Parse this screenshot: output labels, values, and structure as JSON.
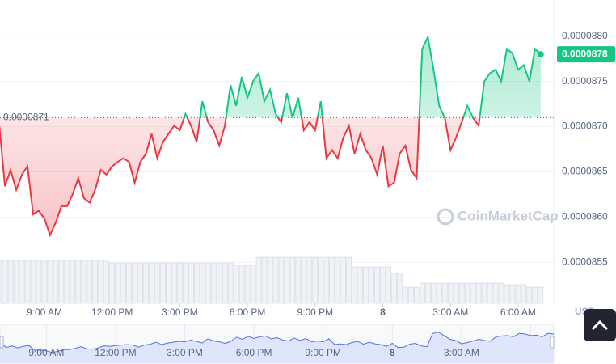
{
  "chart_data": {
    "type": "line",
    "x": [
      7.0,
      7.25,
      7.5,
      7.75,
      8.0,
      8.25,
      8.5,
      8.75,
      9.0,
      9.25,
      9.5,
      9.75,
      10.0,
      10.25,
      10.5,
      10.75,
      11.0,
      11.25,
      11.5,
      11.75,
      12.0,
      12.25,
      12.5,
      12.75,
      13.0,
      13.25,
      13.5,
      13.75,
      14.0,
      14.25,
      14.5,
      14.75,
      15.0,
      15.25,
      15.5,
      15.75,
      16.0,
      16.25,
      16.5,
      16.75,
      17.0,
      17.25,
      17.5,
      17.75,
      18.0,
      18.25,
      18.5,
      18.75,
      19.0,
      19.25,
      19.5,
      19.75,
      20.0,
      20.25,
      20.5,
      20.75,
      21.0,
      21.25,
      21.5,
      21.75,
      22.0,
      22.25,
      22.5,
      22.75,
      23.0,
      23.25,
      23.5,
      23.75,
      24.0,
      24.25,
      24.5,
      24.75,
      25.0,
      25.25,
      25.5,
      25.75,
      26.0,
      26.25,
      26.5,
      26.75,
      27.0,
      27.25,
      27.5,
      27.75,
      28.0,
      28.25,
      28.5,
      28.75,
      29.0,
      29.25,
      29.5,
      29.75,
      30.0,
      30.25,
      30.5,
      30.75,
      31.0
    ],
    "series": [
      {
        "values": [
          8.701e-05,
          8.634e-05,
          8.652e-05,
          8.63e-05,
          8.647e-05,
          8.656e-05,
          8.603e-05,
          8.607e-05,
          8.598e-05,
          8.58e-05,
          8.594e-05,
          8.612e-05,
          8.612e-05,
          8.625e-05,
          8.643e-05,
          8.621e-05,
          8.616e-05,
          8.63e-05,
          8.652e-05,
          8.647e-05,
          8.656e-05,
          8.661e-05,
          8.665e-05,
          8.661e-05,
          8.638e-05,
          8.661e-05,
          8.67e-05,
          8.692e-05,
          8.665e-05,
          8.683e-05,
          8.692e-05,
          8.701e-05,
          8.696e-05,
          8.714e-05,
          8.701e-05,
          8.683e-05,
          8.728e-05,
          8.705e-05,
          8.696e-05,
          8.679e-05,
          8.701e-05,
          8.746e-05,
          8.723e-05,
          8.755e-05,
          8.732e-05,
          8.75e-05,
          8.759e-05,
          8.728e-05,
          8.741e-05,
          8.714e-05,
          8.705e-05,
          8.737e-05,
          8.71e-05,
          8.732e-05,
          8.696e-05,
          8.705e-05,
          8.696e-05,
          8.728e-05,
          8.665e-05,
          8.674e-05,
          8.665e-05,
          8.688e-05,
          8.701e-05,
          8.67e-05,
          8.692e-05,
          8.674e-05,
          8.665e-05,
          8.647e-05,
          8.679e-05,
          8.634e-05,
          8.638e-05,
          8.67e-05,
          8.679e-05,
          8.652e-05,
          8.643e-05,
          8.786e-05,
          8.799e-05,
          8.763e-05,
          8.723e-05,
          8.71e-05,
          8.674e-05,
          8.688e-05,
          8.705e-05,
          8.723e-05,
          8.71e-05,
          8.701e-05,
          8.75e-05,
          8.759e-05,
          8.763e-05,
          8.75e-05,
          8.786e-05,
          8.781e-05,
          8.763e-05,
          8.768e-05,
          8.75e-05,
          8.786e-05,
          8.78e-05
        ],
        "colors": {
          "up": "#16c784",
          "down": "#ea3943"
        }
      }
    ],
    "volume": [
      53,
      53,
      53,
      53,
      53,
      53,
      53,
      53,
      53,
      53,
      53,
      53,
      53,
      53,
      53,
      53,
      53,
      53,
      53,
      53,
      50,
      50,
      50,
      50,
      50,
      50,
      50,
      50,
      50,
      50,
      50,
      50,
      50,
      50,
      50,
      50,
      50,
      50,
      50,
      50,
      50,
      50,
      47,
      47,
      47,
      47,
      57,
      57,
      57,
      57,
      57,
      57,
      57,
      57,
      57,
      57,
      57,
      57,
      57,
      57,
      57,
      57,
      57,
      45,
      45,
      45,
      45,
      45,
      45,
      45,
      37,
      37,
      20,
      20,
      20,
      25,
      25,
      25,
      25,
      25,
      25,
      25,
      25,
      25,
      25,
      25,
      25,
      25,
      25,
      25,
      23,
      23,
      23,
      23,
      20,
      20,
      20
    ],
    "volume_ylim": [
      0,
      100
    ],
    "xlim": [
      7.03,
      31.58
    ],
    "xticks": [
      {
        "value": 9,
        "label": "9:00 AM"
      },
      {
        "value": 12,
        "label": "12:00 PM"
      },
      {
        "value": 15,
        "label": "3:00 PM"
      },
      {
        "value": 18,
        "label": "6:00 PM"
      },
      {
        "value": 21,
        "label": "9:00 PM"
      },
      {
        "value": 24,
        "label": "8"
      },
      {
        "value": 27,
        "label": "3:00 AM"
      },
      {
        "value": 30,
        "label": "6:00 AM"
      }
    ],
    "ylim": [
      8.51e-05,
      8.84e-05
    ],
    "yticks": [
      {
        "value": 8.55e-05,
        "label": "0.0000855"
      },
      {
        "value": 8.6e-05,
        "label": "0.0000860"
      },
      {
        "value": 8.65e-05,
        "label": "0.0000865"
      },
      {
        "value": 8.7e-05,
        "label": "0.0000870"
      },
      {
        "value": 8.75e-05,
        "label": "0.0000875"
      },
      {
        "value": 8.8e-05,
        "label": "0.0000880"
      }
    ],
    "grid": true,
    "baseline": {
      "value": 8.71e-05,
      "label": "0.0000871"
    },
    "last_price": {
      "value": 8.78e-05,
      "label": "0.0000878"
    },
    "currency": "USD",
    "watermark": "CoinMarketCap",
    "navigator": {
      "xlim": [
        6.99,
        31.0
      ],
      "ylim": [
        8.5e-05,
        8.85e-05
      ]
    }
  }
}
